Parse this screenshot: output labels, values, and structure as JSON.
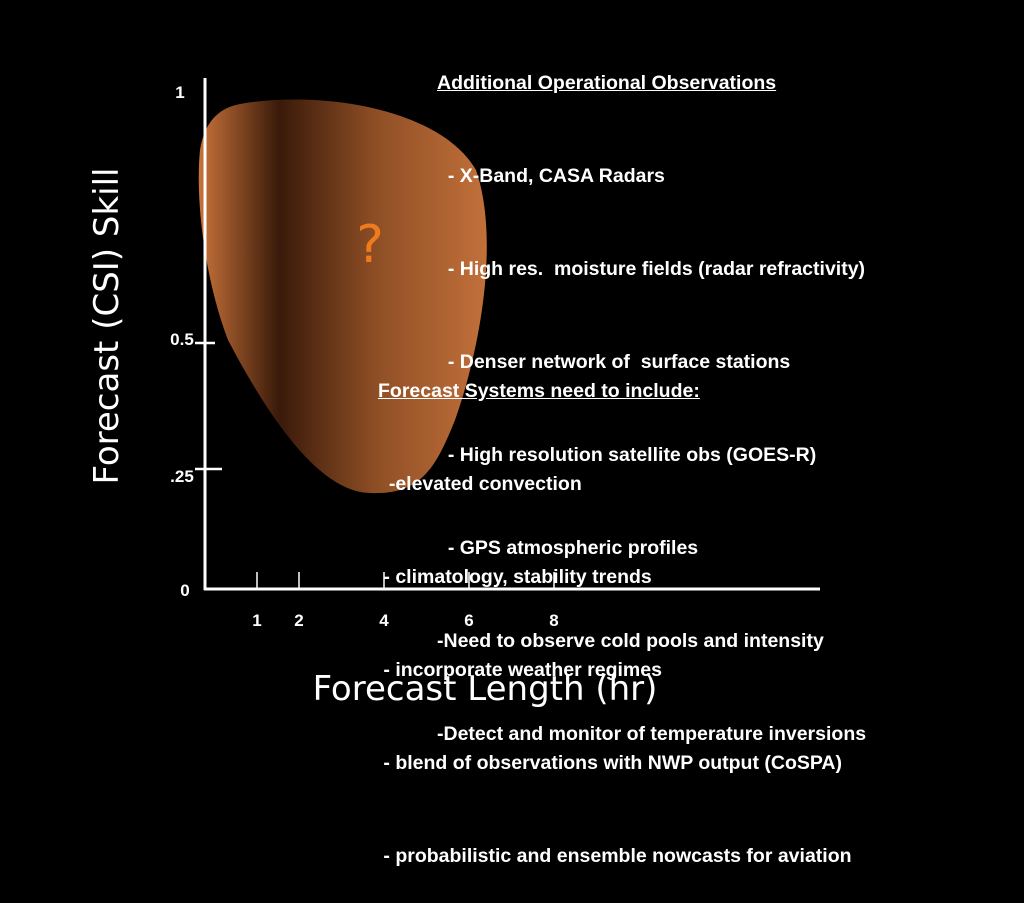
{
  "chart_data": {
    "type": "area",
    "xlabel": "Forecast Length (hr)",
    "ylabel": "Forecast (CSI) Skill",
    "x_ticks": [
      "1",
      "2",
      "4",
      "6",
      "8"
    ],
    "y_ticks": [
      "1",
      "0.5",
      ".25",
      "0"
    ],
    "region_label": "?",
    "colors": {
      "region_light": "#c8733a",
      "region_dark": "#3a1a0a",
      "question_mark": "#f07a1e"
    }
  },
  "notes": {
    "observations": {
      "header": "Additional Operational Observations",
      "items": [
        "  - X-Band, CASA Radars",
        "  - High res.  moisture fields (radar refractivity)",
        "  - Denser network of  surface stations",
        "  - High resolution satellite obs (GOES-R)",
        "  - GPS atmospheric profiles",
        "-Need to observe cold pools and intensity",
        "-Detect and monitor of temperature inversions"
      ]
    },
    "systems": {
      "header": "Forecast Systems need to include:",
      "items": [
        "  -elevated convection",
        " - climatology, stability trends",
        " - incorporate weather regimes",
        " - blend of observations with NWP output (CoSPA)",
        " - probabilistic and ensemble nowcasts for aviation"
      ]
    }
  }
}
